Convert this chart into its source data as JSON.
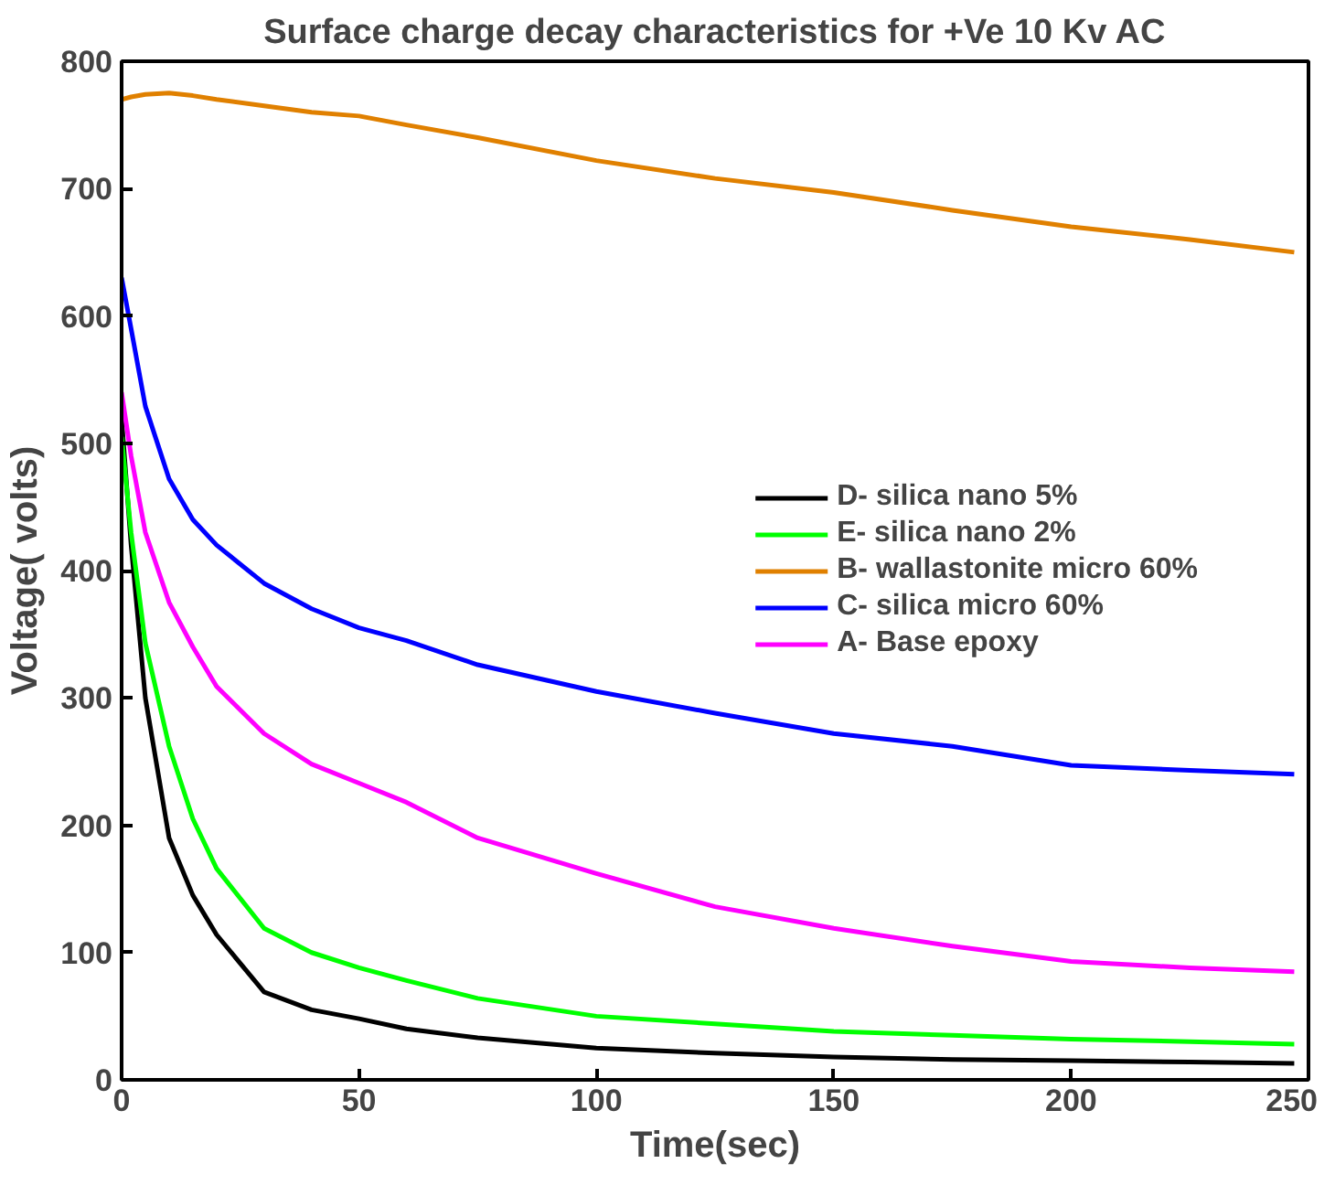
{
  "chart_data": {
    "type": "line",
    "title": "Surface charge decay characteristics for +Ve 10 Kv AC",
    "xlabel": "Time(sec)",
    "ylabel": "Voltage( volts)",
    "xlim": [
      0,
      250
    ],
    "ylim": [
      0,
      800
    ],
    "xticks": [
      0,
      50,
      100,
      150,
      200,
      250
    ],
    "yticks": [
      0,
      100,
      200,
      300,
      400,
      500,
      600,
      700,
      800
    ],
    "grid": false,
    "legend": "right",
    "line_style": "solid",
    "marker": "none",
    "x": [
      0,
      2,
      5,
      10,
      15,
      20,
      30,
      40,
      50,
      60,
      75,
      100,
      125,
      150,
      175,
      200,
      225,
      247
    ],
    "series": [
      {
        "name": "D- silica nano 5%",
        "color": "#000000",
        "values": [
          520,
          420,
          300,
          190,
          145,
          114,
          69,
          55,
          48,
          40,
          33,
          25,
          21,
          18,
          16,
          15,
          14,
          13
        ]
      },
      {
        "name": "E- silica nano 2%",
        "color": "#00ff00",
        "values": [
          505,
          430,
          343,
          262,
          205,
          166,
          119,
          100,
          88,
          78,
          64,
          50,
          44,
          38,
          35,
          32,
          30,
          28
        ]
      },
      {
        "name": "B- wallastonite micro 60%",
        "color": "#e08000",
        "values": [
          770,
          772,
          774,
          775,
          773,
          770,
          765,
          760,
          757,
          750,
          740,
          722,
          708,
          697,
          683,
          670,
          660,
          650
        ]
      },
      {
        "name": "C- silica micro 60%",
        "color": "#0000ff",
        "values": [
          630,
          590,
          529,
          472,
          440,
          420,
          390,
          370,
          355,
          345,
          326,
          305,
          288,
          272,
          262,
          247,
          243,
          240
        ]
      },
      {
        "name": "A- Base epoxy",
        "color": "#ff00ff",
        "values": [
          540,
          490,
          430,
          375,
          340,
          309,
          272,
          248,
          233,
          218,
          190,
          162,
          136,
          119,
          105,
          93,
          88,
          85
        ]
      }
    ]
  }
}
